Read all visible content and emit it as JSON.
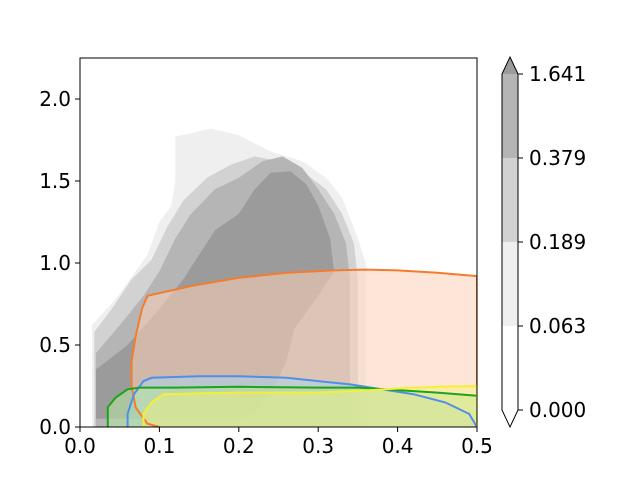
{
  "chart_data": {
    "type": "contour",
    "title": "",
    "xlabel": "",
    "ylabel": "",
    "xlim": [
      0.0,
      0.5
    ],
    "ylim": [
      0.0,
      2.25
    ],
    "grid": false,
    "x_ticks": [
      0.0,
      0.1,
      0.2,
      0.3,
      0.4,
      0.5
    ],
    "x_tick_labels": [
      "0.0",
      "0.1",
      "0.2",
      "0.3",
      "0.4",
      "0.5"
    ],
    "y_ticks": [
      0.0,
      0.5,
      1.0,
      1.5,
      2.0
    ],
    "y_tick_labels": [
      "0.0",
      "0.5",
      "1.0",
      "1.5",
      "2.0"
    ],
    "colorbar": {
      "levels": [
        "0.000",
        "0.063",
        "0.189",
        "0.379",
        "1.641"
      ],
      "bands": [
        {
          "from": 0.0,
          "to": 0.063,
          "color": "#ffffff"
        },
        {
          "from": 0.063,
          "to": 0.189,
          "color": "#efefef"
        },
        {
          "from": 0.189,
          "to": 0.379,
          "color": "#d2d2d2"
        },
        {
          "from": 0.379,
          "to": 1.641,
          "color": "#b5b5b5"
        }
      ],
      "extend": "both",
      "upper_extend_color": "#9b9b9b",
      "lower_extend_color": "#ffffff"
    },
    "density_contours": [
      {
        "level": 0.063,
        "color": "#efefef",
        "points": [
          [
            0.015,
            0.05
          ],
          [
            0.015,
            0.62
          ],
          [
            0.045,
            0.78
          ],
          [
            0.07,
            0.95
          ],
          [
            0.085,
            1.05
          ],
          [
            0.1,
            1.25
          ],
          [
            0.115,
            1.35
          ],
          [
            0.12,
            1.5
          ],
          [
            0.12,
            1.77
          ],
          [
            0.165,
            1.82
          ],
          [
            0.2,
            1.78
          ],
          [
            0.24,
            1.68
          ],
          [
            0.28,
            1.62
          ],
          [
            0.31,
            1.52
          ],
          [
            0.33,
            1.4
          ],
          [
            0.35,
            1.15
          ],
          [
            0.36,
            1.0
          ],
          [
            0.36,
            0.8
          ],
          [
            0.36,
            0.4
          ],
          [
            0.36,
            0.0
          ],
          [
            0.015,
            0.0
          ]
        ]
      },
      {
        "level": 0.189,
        "color": "#d2d2d2",
        "points": [
          [
            0.018,
            0.05
          ],
          [
            0.018,
            0.58
          ],
          [
            0.04,
            0.72
          ],
          [
            0.065,
            0.9
          ],
          [
            0.09,
            1.02
          ],
          [
            0.11,
            1.22
          ],
          [
            0.13,
            1.38
          ],
          [
            0.16,
            1.52
          ],
          [
            0.19,
            1.6
          ],
          [
            0.22,
            1.65
          ],
          [
            0.25,
            1.62
          ],
          [
            0.28,
            1.56
          ],
          [
            0.31,
            1.45
          ],
          [
            0.33,
            1.3
          ],
          [
            0.345,
            1.12
          ],
          [
            0.35,
            0.9
          ],
          [
            0.35,
            0.45
          ],
          [
            0.35,
            0.0
          ],
          [
            0.018,
            0.0
          ]
        ]
      },
      {
        "level": 0.379,
        "color": "#b5b5b5",
        "points": [
          [
            0.02,
            0.05
          ],
          [
            0.02,
            0.45
          ],
          [
            0.05,
            0.62
          ],
          [
            0.08,
            0.8
          ],
          [
            0.1,
            0.95
          ],
          [
            0.12,
            1.15
          ],
          [
            0.14,
            1.3
          ],
          [
            0.17,
            1.45
          ],
          [
            0.2,
            1.52
          ],
          [
            0.23,
            1.62
          ],
          [
            0.255,
            1.65
          ],
          [
            0.28,
            1.58
          ],
          [
            0.3,
            1.45
          ],
          [
            0.32,
            1.3
          ],
          [
            0.335,
            1.12
          ],
          [
            0.34,
            0.9
          ],
          [
            0.34,
            0.5
          ],
          [
            0.34,
            0.0
          ],
          [
            0.02,
            0.0
          ]
        ]
      },
      {
        "level": 1.641,
        "color": "#9b9b9b",
        "points": [
          [
            0.02,
            0.05
          ],
          [
            0.02,
            0.35
          ],
          [
            0.06,
            0.5
          ],
          [
            0.1,
            0.72
          ],
          [
            0.13,
            0.9
          ],
          [
            0.15,
            1.05
          ],
          [
            0.17,
            1.2
          ],
          [
            0.2,
            1.3
          ],
          [
            0.22,
            1.45
          ],
          [
            0.24,
            1.55
          ],
          [
            0.265,
            1.56
          ],
          [
            0.285,
            1.48
          ],
          [
            0.3,
            1.35
          ],
          [
            0.315,
            1.15
          ],
          [
            0.32,
            0.95
          ],
          [
            0.3,
            0.8
          ],
          [
            0.27,
            0.6
          ],
          [
            0.26,
            0.4
          ],
          [
            0.24,
            0.2
          ],
          [
            0.22,
            0.08
          ],
          [
            0.2,
            0.05
          ]
        ]
      }
    ],
    "regions": [
      {
        "outline_color": "#f47c2e",
        "fill_color": "#fbd1b6",
        "fill_opacity": 0.55,
        "points": [
          [
            0.1,
            0.0
          ],
          [
            0.085,
            0.02
          ],
          [
            0.07,
            0.12
          ],
          [
            0.065,
            0.25
          ],
          [
            0.065,
            0.4
          ],
          [
            0.07,
            0.55
          ],
          [
            0.078,
            0.72
          ],
          [
            0.085,
            0.8
          ],
          [
            0.14,
            0.86
          ],
          [
            0.2,
            0.91
          ],
          [
            0.26,
            0.94
          ],
          [
            0.32,
            0.955
          ],
          [
            0.36,
            0.96
          ],
          [
            0.4,
            0.955
          ],
          [
            0.45,
            0.94
          ],
          [
            0.5,
            0.92
          ],
          [
            0.5,
            0.0
          ]
        ]
      },
      {
        "outline_color": "#4f8fe8",
        "fill_color": "#a7d4f0",
        "fill_opacity": 0.5,
        "points": [
          [
            0.06,
            0.0
          ],
          [
            0.06,
            0.08
          ],
          [
            0.068,
            0.2
          ],
          [
            0.08,
            0.28
          ],
          [
            0.09,
            0.3
          ],
          [
            0.15,
            0.31
          ],
          [
            0.2,
            0.31
          ],
          [
            0.26,
            0.3
          ],
          [
            0.3,
            0.28
          ],
          [
            0.34,
            0.26
          ],
          [
            0.38,
            0.23
          ],
          [
            0.42,
            0.2
          ],
          [
            0.46,
            0.15
          ],
          [
            0.49,
            0.08
          ],
          [
            0.5,
            0.0
          ]
        ]
      },
      {
        "outline_color": "#1aa51a",
        "fill_color": "#b6e2a0",
        "fill_opacity": 0.6,
        "points": [
          [
            0.035,
            0.0
          ],
          [
            0.035,
            0.12
          ],
          [
            0.045,
            0.18
          ],
          [
            0.06,
            0.23
          ],
          [
            0.075,
            0.24
          ],
          [
            0.12,
            0.24
          ],
          [
            0.2,
            0.245
          ],
          [
            0.3,
            0.24
          ],
          [
            0.35,
            0.24
          ],
          [
            0.4,
            0.225
          ],
          [
            0.45,
            0.21
          ],
          [
            0.5,
            0.19
          ],
          [
            0.5,
            0.0
          ]
        ]
      },
      {
        "outline_color": "#f5f034",
        "fill_color": "#f5ef7a",
        "fill_opacity": 0.45,
        "points": [
          [
            0.08,
            0.0
          ],
          [
            0.08,
            0.08
          ],
          [
            0.09,
            0.15
          ],
          [
            0.105,
            0.2
          ],
          [
            0.15,
            0.205
          ],
          [
            0.2,
            0.21
          ],
          [
            0.3,
            0.21
          ],
          [
            0.35,
            0.22
          ],
          [
            0.4,
            0.235
          ],
          [
            0.45,
            0.245
          ],
          [
            0.5,
            0.25
          ],
          [
            0.5,
            0.0
          ]
        ]
      }
    ]
  }
}
